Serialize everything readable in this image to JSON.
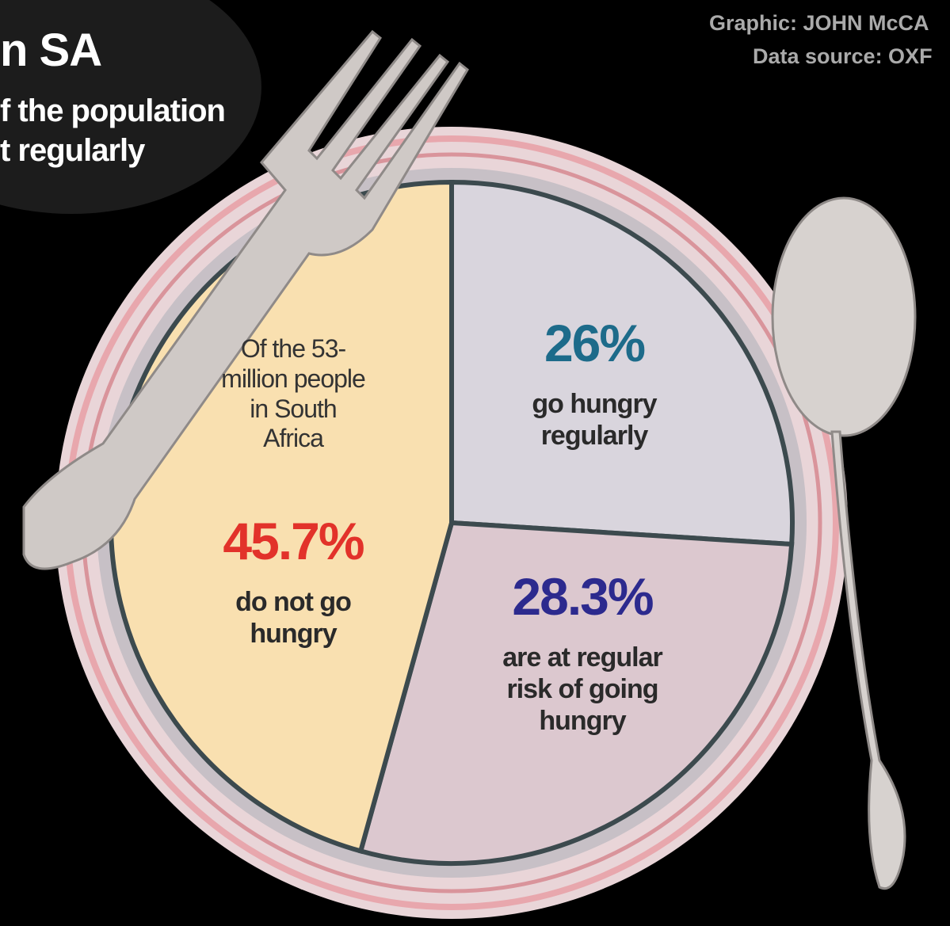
{
  "chart_data": {
    "type": "pie",
    "title": "n SA",
    "subtitle": [
      "f the population",
      "t regularly"
    ],
    "credits": [
      "Graphic: JOHN McCA",
      "Data source: OXF"
    ],
    "annotation": "Of the 53-million people in South Africa",
    "categories": [
      "go hungry regularly",
      "are at regular risk of going hungry",
      "do not go hungry"
    ],
    "values": [
      26,
      28.3,
      45.7
    ],
    "value_labels": [
      "26%",
      "28.3%",
      "45.7%"
    ],
    "colors": [
      "#d9d5dd",
      "#dcc8cf",
      "#f9e0b0"
    ],
    "label_colors": [
      "#1d6b8a",
      "#2c2a8e",
      "#e2322a"
    ]
  }
}
